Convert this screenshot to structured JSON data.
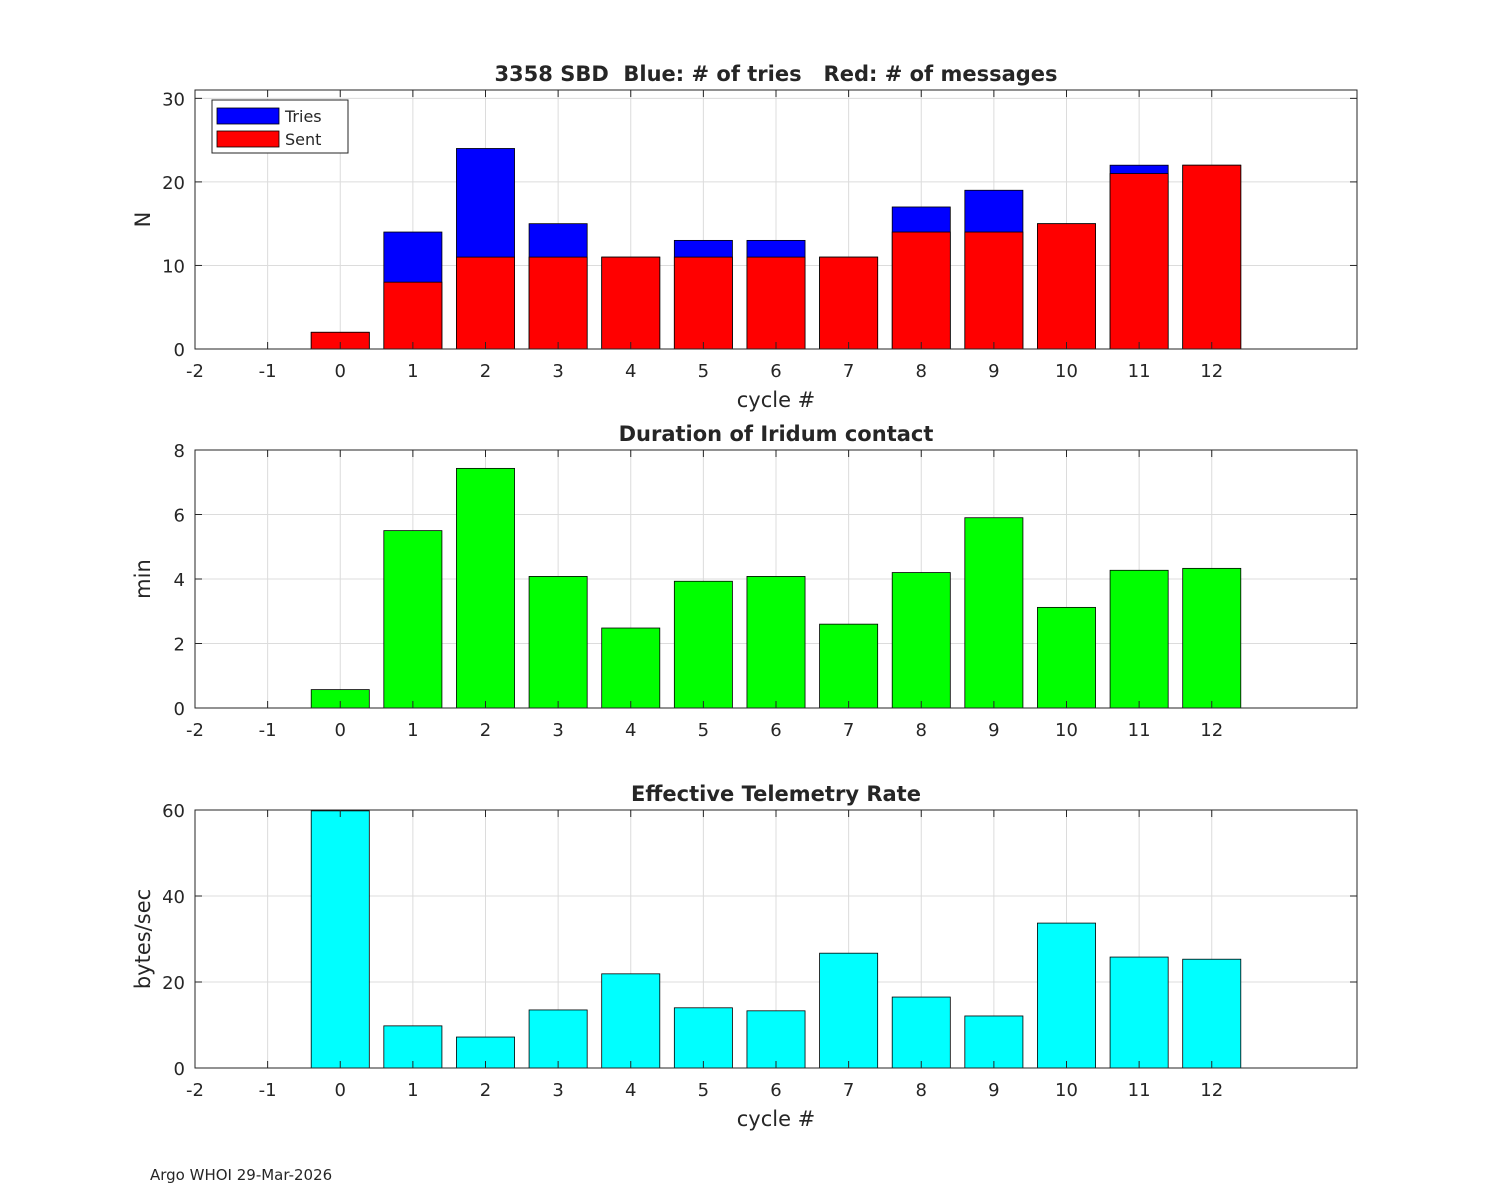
{
  "chart_data": [
    {
      "type": "bar",
      "title": "3358 SBD  Blue: # of tries   Red: # of messages",
      "xlabel": "cycle #",
      "ylabel": "N",
      "xlim": [
        -2,
        14
      ],
      "ylim": [
        0,
        31
      ],
      "xticks": [
        -2,
        -1,
        0,
        1,
        2,
        3,
        4,
        5,
        6,
        7,
        8,
        9,
        10,
        11,
        12
      ],
      "yticks": [
        0,
        10,
        20,
        30
      ],
      "grid": true,
      "legend": "top-left",
      "categories": [
        0,
        1,
        2,
        3,
        4,
        5,
        6,
        7,
        8,
        9,
        10,
        11,
        12
      ],
      "series": [
        {
          "name": "Tries",
          "color": "#0000ff",
          "values": [
            2,
            14,
            24,
            15,
            11,
            13,
            13,
            11,
            17,
            19,
            15,
            22,
            22
          ]
        },
        {
          "name": "Sent",
          "color": "#ff0000",
          "values": [
            2,
            8,
            11,
            11,
            11,
            11,
            11,
            11,
            14,
            14,
            15,
            21,
            22
          ]
        }
      ]
    },
    {
      "type": "bar",
      "title": "Duration of Iridum contact",
      "xlabel": "",
      "ylabel": "min",
      "xlim": [
        -2,
        14
      ],
      "ylim": [
        0,
        8
      ],
      "xticks": [
        -2,
        -1,
        0,
        1,
        2,
        3,
        4,
        5,
        6,
        7,
        8,
        9,
        10,
        11,
        12
      ],
      "yticks": [
        0,
        2,
        4,
        6,
        8
      ],
      "grid": true,
      "categories": [
        0,
        1,
        2,
        3,
        4,
        5,
        6,
        7,
        8,
        9,
        10,
        11,
        12
      ],
      "series": [
        {
          "name": "Duration",
          "color": "#00ff00",
          "values": [
            0.57,
            5.5,
            7.43,
            4.08,
            2.48,
            3.93,
            4.08,
            2.6,
            4.2,
            5.9,
            3.12,
            4.27,
            4.33
          ]
        }
      ]
    },
    {
      "type": "bar",
      "title": "Effective Telemetry Rate",
      "xlabel": "cycle #",
      "ylabel": "bytes/sec",
      "xlim": [
        -2,
        14
      ],
      "ylim": [
        0,
        60
      ],
      "xticks": [
        -2,
        -1,
        0,
        1,
        2,
        3,
        4,
        5,
        6,
        7,
        8,
        9,
        10,
        11,
        12
      ],
      "yticks": [
        0,
        20,
        40,
        60
      ],
      "grid": true,
      "categories": [
        0,
        1,
        2,
        3,
        4,
        5,
        6,
        7,
        8,
        9,
        10,
        11,
        12
      ],
      "series": [
        {
          "name": "Rate",
          "color": "#00ffff",
          "values": [
            59.8,
            9.8,
            7.2,
            13.5,
            21.9,
            14,
            13.3,
            26.7,
            16.5,
            12.1,
            33.7,
            25.8,
            25.3
          ]
        }
      ]
    }
  ],
  "footer": "Argo WHOI 29-Mar-2026"
}
